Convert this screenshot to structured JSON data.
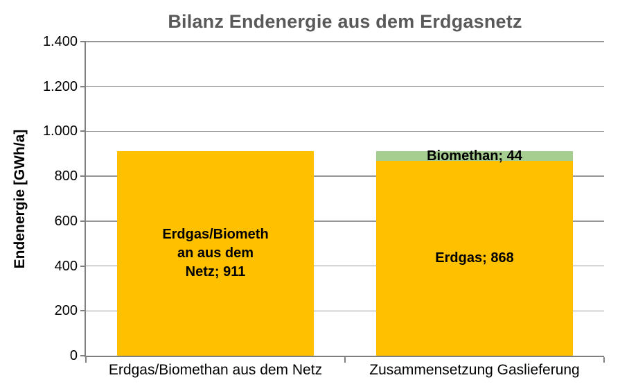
{
  "chart_data": {
    "type": "bar",
    "stacked": true,
    "title": "Bilanz Endenergie aus dem Erdgasnetz",
    "ylabel": "Endenergie [GWh/a]",
    "xlabel": "",
    "ylim": [
      0,
      1400
    ],
    "ytick_step": 200,
    "ytick_labels": [
      "0",
      "200",
      "400",
      "600",
      "800",
      "1.000",
      "1.200",
      "1.400"
    ],
    "grid": true,
    "legend_position": "none",
    "categories": [
      "Erdgas/Biomethan aus dem Netz",
      "Zusammensetzung Gaslieferung"
    ],
    "bars": [
      {
        "category": "Erdgas/Biomethan aus dem Netz",
        "segments": [
          {
            "name": "Erdgas/Biomethan aus dem Netz",
            "value": 911,
            "color": "#FFC000",
            "label_lines": [
              "Erdgas/Biometh",
              "an aus dem",
              "Netz; 911"
            ]
          }
        ]
      },
      {
        "category": "Zusammensetzung Gaslieferung",
        "segments": [
          {
            "name": "Erdgas",
            "value": 868,
            "color": "#FFC000",
            "label_lines": [
              "Erdgas; 868"
            ]
          },
          {
            "name": "Biomethan",
            "value": 44,
            "color": "#A6CE91",
            "label_lines": [
              "Biomethan; 44"
            ]
          }
        ]
      }
    ],
    "colors": {
      "erdgas": "#FFC000",
      "biomethan": "#A6CE91",
      "title_text": "#595959",
      "axis_line": "#808080",
      "gridline": "#969696",
      "label_text": "#000000"
    }
  }
}
